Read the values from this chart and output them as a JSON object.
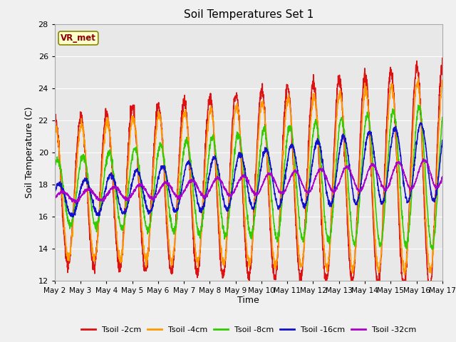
{
  "title": "Soil Temperatures Set 1",
  "xlabel": "Time",
  "ylabel": "Soil Temperature (C)",
  "ylim": [
    12,
    28
  ],
  "xlim": [
    0,
    15
  ],
  "plot_bg": "#e8e8e8",
  "fig_bg": "#f0f0f0",
  "grid_color": "#ffffff",
  "annotation_text": "VR_met",
  "annotation_bg": "#ffffcc",
  "annotation_border": "#888800",
  "annotation_text_color": "#880000",
  "xtick_labels": [
    "May 2",
    "May 3",
    "May 4",
    "May 5",
    "May 6",
    "May 7",
    "May 8",
    "May 9",
    "May 10",
    "May 11",
    "May 12",
    "May 13",
    "May 14",
    "May 15",
    "May 16",
    "May 17"
  ],
  "xtick_positions": [
    0,
    1,
    2,
    3,
    4,
    5,
    6,
    7,
    8,
    9,
    10,
    11,
    12,
    13,
    14,
    15
  ],
  "ytick_positions": [
    12,
    14,
    16,
    18,
    20,
    22,
    24,
    26,
    28
  ],
  "series": [
    {
      "label": "Tsoil -2cm",
      "color": "#dd1111",
      "lw": 1.2
    },
    {
      "label": "Tsoil -4cm",
      "color": "#ff9900",
      "lw": 1.2
    },
    {
      "label": "Tsoil -8cm",
      "color": "#33cc00",
      "lw": 1.2
    },
    {
      "label": "Tsoil -16cm",
      "color": "#1111cc",
      "lw": 1.2
    },
    {
      "label": "Tsoil -32cm",
      "color": "#aa00cc",
      "lw": 1.2
    }
  ]
}
